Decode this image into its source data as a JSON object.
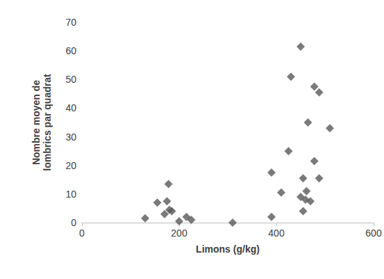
{
  "chart_data": {
    "type": "scatter",
    "x_label": "Limons (g/kg)",
    "y_label": "Nombre moyen de lombrics par quadrat",
    "x": [
      130,
      155,
      170,
      175,
      178,
      180,
      185,
      200,
      215,
      225,
      310,
      390,
      390,
      410,
      425,
      430,
      450,
      450,
      455,
      455,
      460,
      462,
      465,
      470,
      478,
      478,
      488,
      488,
      510
    ],
    "values": [
      1.5,
      7,
      3,
      7.5,
      13.5,
      4.5,
      4,
      0.5,
      2,
      1,
      0,
      17.5,
      2,
      10.5,
      25,
      51,
      61.5,
      9,
      15.5,
      4,
      8,
      11,
      35,
      7.5,
      21.5,
      47.5,
      45.5,
      15.5,
      33
    ],
    "color": "#595959",
    "marker": "diamond",
    "xlim": [
      0,
      600
    ],
    "xticks": [
      0,
      200,
      400,
      600
    ],
    "ylim": [
      0,
      70
    ],
    "yticks": [
      0,
      10,
      20,
      30,
      40,
      50,
      60,
      70
    ],
    "grid": false
  }
}
